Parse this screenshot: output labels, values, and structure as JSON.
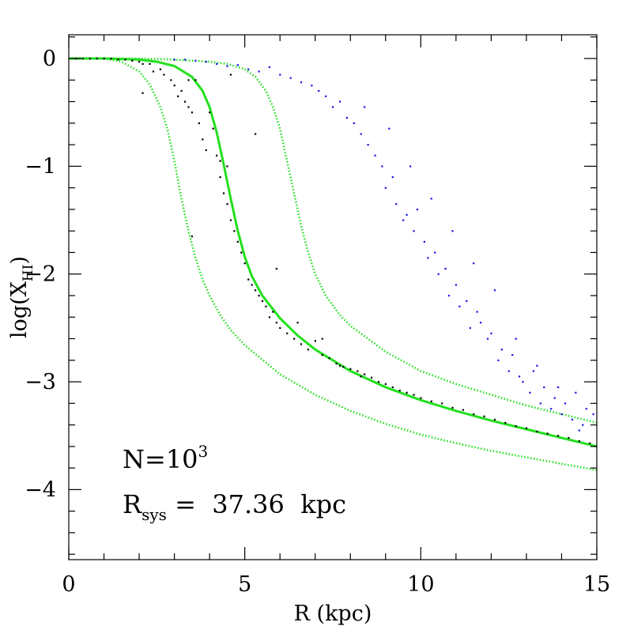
{
  "chart_data": {
    "type": "scatter",
    "title": "",
    "xlabel": "R (kpc)",
    "ylabel": "log(X_HI)",
    "ylabel_main": "log(X",
    "ylabel_sub": "HI",
    "ylabel_close": ")",
    "xlim": [
      0,
      15
    ],
    "ylim": [
      -4.65,
      0.22
    ],
    "xticks": [
      {
        "value": 0,
        "label": "0"
      },
      {
        "value": 5,
        "label": "5"
      },
      {
        "value": 10,
        "label": "10"
      },
      {
        "value": 15,
        "label": "15"
      }
    ],
    "yticks": [
      {
        "value": 0,
        "label": "0"
      },
      {
        "value": -1,
        "label": "−1"
      },
      {
        "value": -2,
        "label": "−2"
      },
      {
        "value": -3,
        "label": "−3"
      },
      {
        "value": -4,
        "label": "−4"
      }
    ],
    "x_minor_step": 1,
    "y_minor_step": 0.2,
    "annotations": {
      "n_label": "N=10",
      "n_exp": "3",
      "r_label": "R",
      "r_sub": "sys",
      "r_value": " =  37.36  kpc"
    },
    "colors": {
      "model": "#22e01e",
      "black_points": "#000000",
      "blue_points": "#1414e6"
    },
    "series": [
      {
        "name": "model-solid",
        "style": "solid",
        "x": [
          0,
          1,
          2,
          2.5,
          3,
          3.5,
          3.8,
          4.0,
          4.2,
          4.4,
          4.6,
          4.8,
          5.0,
          5.2,
          5.5,
          6.0,
          6.5,
          7,
          8,
          9,
          10,
          11,
          12,
          13,
          14,
          15
        ],
        "y": [
          0,
          0,
          -0.01,
          -0.03,
          -0.07,
          -0.17,
          -0.3,
          -0.45,
          -0.68,
          -0.98,
          -1.3,
          -1.6,
          -1.84,
          -2.02,
          -2.2,
          -2.41,
          -2.57,
          -2.7,
          -2.9,
          -3.05,
          -3.17,
          -3.27,
          -3.36,
          -3.44,
          -3.52,
          -3.6
        ]
      },
      {
        "name": "model-dotted-upper",
        "style": "dotted",
        "x": [
          0,
          2,
          3,
          4,
          4.5,
          5,
          5.3,
          5.6,
          5.8,
          6.0,
          6.2,
          6.4,
          6.6,
          6.8,
          7.0,
          7.3,
          7.7,
          8,
          9,
          10,
          11,
          12,
          13,
          14,
          15
        ],
        "y": [
          0,
          0,
          -0.01,
          -0.03,
          -0.05,
          -0.1,
          -0.17,
          -0.3,
          -0.45,
          -0.65,
          -0.95,
          -1.25,
          -1.55,
          -1.8,
          -2.0,
          -2.2,
          -2.38,
          -2.48,
          -2.72,
          -2.9,
          -3.02,
          -3.12,
          -3.22,
          -3.3,
          -3.38
        ]
      },
      {
        "name": "model-dotted-lower",
        "style": "dotted",
        "x": [
          0,
          1,
          1.5,
          2.0,
          2.3,
          2.6,
          2.8,
          3.0,
          3.2,
          3.4,
          3.6,
          3.8,
          4.0,
          4.3,
          4.6,
          5,
          6,
          7,
          8,
          9,
          10,
          11,
          12,
          13,
          14,
          15
        ],
        "y": [
          0,
          0,
          -0.03,
          -0.12,
          -0.24,
          -0.45,
          -0.65,
          -0.95,
          -1.3,
          -1.6,
          -1.85,
          -2.05,
          -2.2,
          -2.38,
          -2.52,
          -2.66,
          -2.93,
          -3.12,
          -3.27,
          -3.39,
          -3.49,
          -3.57,
          -3.64,
          -3.7,
          -3.76,
          -3.82
        ]
      },
      {
        "name": "black-points",
        "style": "points",
        "x": [
          0.2,
          0.4,
          0.6,
          0.8,
          1.0,
          1.2,
          1.4,
          1.6,
          1.8,
          2.0,
          2.1,
          2.3,
          2.4,
          2.6,
          2.7,
          2.9,
          3.0,
          3.1,
          3.2,
          3.3,
          3.4,
          3.5,
          3.5,
          3.6,
          3.7,
          3.8,
          3.9,
          4.0,
          4.1,
          4.2,
          4.3,
          4.3,
          4.4,
          4.5,
          4.5,
          4.6,
          4.7,
          4.8,
          4.9,
          5.0,
          5.1,
          5.2,
          5.3,
          5.4,
          5.5,
          5.6,
          5.7,
          5.8,
          5.9,
          6.0,
          6.2,
          6.4,
          6.6,
          6.8,
          7.0,
          7.2,
          7.4,
          7.6,
          7.8,
          8.0,
          8.2,
          8.4,
          8.6,
          8.8,
          9.0,
          9.2,
          9.4,
          9.6,
          9.8,
          10.0,
          10.3,
          10.6,
          10.9,
          11.2,
          11.5,
          11.8,
          12.1,
          12.4,
          12.7,
          13.0,
          13.3,
          13.6,
          13.9,
          14.2,
          14.5,
          14.8,
          2.1,
          3.4,
          4.6,
          5.3,
          5.9,
          6.5,
          7.2,
          7.7,
          8.3
        ],
        "y": [
          0,
          0,
          0,
          0,
          0,
          0,
          -0.01,
          -0.01,
          -0.02,
          -0.03,
          -0.32,
          -0.05,
          -0.12,
          -0.1,
          -0.15,
          -0.2,
          -0.25,
          -0.35,
          -0.3,
          -0.4,
          -0.45,
          -0.5,
          -1.65,
          -0.2,
          -0.6,
          -0.75,
          -0.85,
          -0.5,
          -0.65,
          -0.9,
          -0.95,
          -1.1,
          -1.25,
          -1.35,
          -1.0,
          -1.5,
          -1.6,
          -1.7,
          -1.8,
          -1.9,
          -2.05,
          -2.1,
          -2.15,
          -2.2,
          -2.25,
          -2.3,
          -2.4,
          -2.35,
          -2.45,
          -2.5,
          -2.55,
          -2.6,
          -2.65,
          -2.7,
          -2.62,
          -2.75,
          -2.78,
          -2.83,
          -2.86,
          -2.88,
          -2.9,
          -2.93,
          -2.96,
          -3.0,
          -3.02,
          -3.05,
          -3.08,
          -3.1,
          -3.12,
          -3.15,
          -3.18,
          -3.2,
          -3.24,
          -3.26,
          -3.3,
          -3.32,
          -3.35,
          -3.38,
          -3.41,
          -3.43,
          -3.46,
          -3.48,
          -3.5,
          -3.52,
          -3.55,
          -3.57,
          -0.05,
          -0.2,
          -0.15,
          -0.7,
          -1.95,
          -2.45,
          -2.6,
          -2.85,
          -2.95
        ]
      },
      {
        "name": "blue-points",
        "style": "points",
        "x": [
          3.0,
          3.3,
          3.6,
          3.9,
          4.2,
          4.5,
          4.8,
          5.1,
          5.4,
          5.7,
          6.0,
          6.3,
          6.6,
          6.9,
          7.1,
          7.3,
          7.5,
          7.7,
          7.9,
          8.1,
          8.3,
          8.5,
          8.7,
          8.9,
          9.0,
          9.2,
          9.3,
          9.5,
          9.6,
          9.8,
          9.9,
          10.1,
          10.2,
          10.4,
          10.5,
          10.7,
          10.8,
          11.0,
          11.1,
          11.3,
          11.4,
          11.6,
          11.7,
          11.9,
          12.0,
          12.2,
          12.3,
          12.5,
          12.6,
          12.8,
          12.9,
          13.1,
          13.2,
          13.4,
          13.5,
          13.7,
          13.8,
          14.0,
          14.1,
          14.3,
          14.4,
          14.6,
          14.7,
          14.9,
          8.4,
          9.1,
          9.7,
          10.3,
          10.9,
          11.5,
          12.1,
          12.7,
          13.3,
          13.9,
          14.5
        ],
        "y": [
          -0.01,
          -0.01,
          -0.02,
          -0.03,
          -0.05,
          -0.07,
          -0.06,
          -0.1,
          -0.12,
          -0.08,
          -0.15,
          -0.18,
          -0.22,
          -0.25,
          -0.3,
          -0.35,
          -0.45,
          -0.4,
          -0.55,
          -0.6,
          -0.7,
          -0.8,
          -0.9,
          -1.0,
          -1.2,
          -1.1,
          -1.35,
          -1.5,
          -1.45,
          -1.6,
          -1.4,
          -1.7,
          -1.85,
          -1.8,
          -2.0,
          -1.95,
          -2.2,
          -2.1,
          -2.3,
          -2.25,
          -2.5,
          -2.35,
          -2.45,
          -2.6,
          -2.55,
          -2.8,
          -2.7,
          -2.9,
          -2.75,
          -2.95,
          -3.0,
          -3.1,
          -2.9,
          -3.2,
          -3.05,
          -3.25,
          -3.15,
          -3.3,
          -3.2,
          -3.35,
          -3.1,
          -3.4,
          -3.25,
          -3.3,
          -0.45,
          -0.65,
          -1.0,
          -1.3,
          -1.6,
          -1.9,
          -2.15,
          -2.6,
          -2.85,
          -3.05,
          -3.45
        ]
      }
    ]
  }
}
